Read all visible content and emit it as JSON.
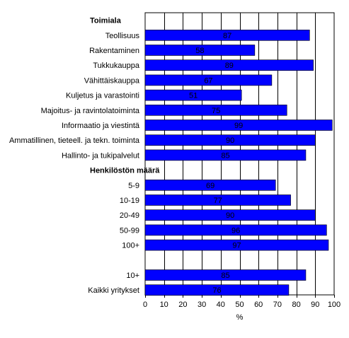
{
  "chart_data": {
    "type": "bar",
    "orientation": "horizontal",
    "xlabel": "%",
    "xlim": [
      0,
      100
    ],
    "xticks": [
      "0",
      "10",
      "20",
      "30",
      "40",
      "50",
      "60",
      "70",
      "80",
      "90",
      "100"
    ],
    "grid": true,
    "bar_color": "#0000FF",
    "groups": [
      {
        "heading": "Toimiala",
        "categories": [
          "Teollisuus",
          "Rakentaminen",
          "Tukkukauppa",
          "Vähittäiskauppa",
          "Kuljetus ja varastointi",
          "Majoitus- ja ravintolatoiminta",
          "Informaatio ja viestintä",
          "Ammatillinen, tieteell. ja tekn. toiminta",
          "Hallinto- ja tukipalvelut"
        ],
        "values": [
          87,
          58,
          89,
          67,
          51,
          75,
          99,
          90,
          85
        ]
      },
      {
        "heading": "Henkilöstön määrä",
        "categories": [
          "5-9",
          "10-19",
          "20-49",
          "50-99",
          "100+"
        ],
        "values": [
          69,
          77,
          90,
          96,
          97
        ]
      },
      {
        "heading": "",
        "categories": [
          "10+",
          "Kaikki yritykset"
        ],
        "values": [
          85,
          76
        ]
      }
    ]
  }
}
